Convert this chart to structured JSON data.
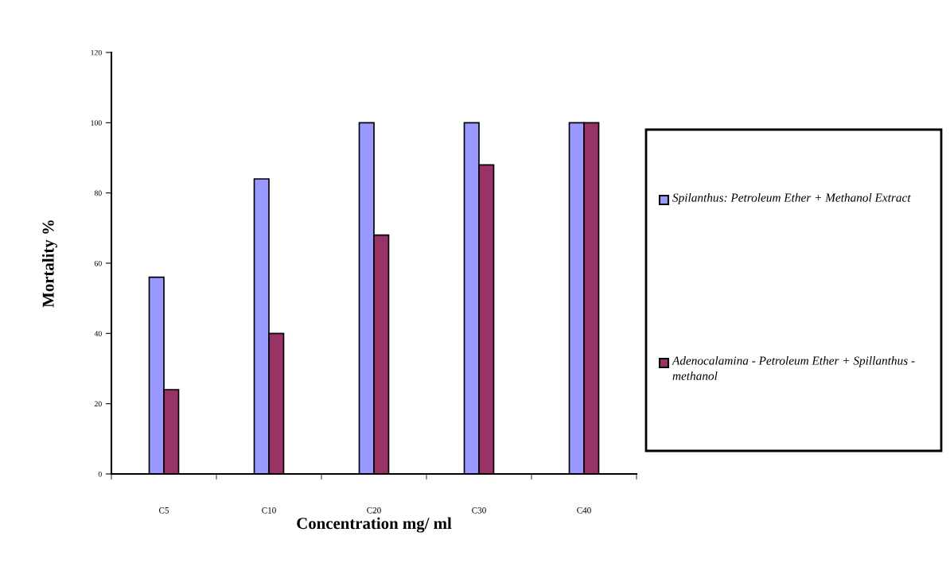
{
  "chart_data": {
    "type": "bar",
    "xlabel": "Concentration mg/ ml",
    "ylabel": "Mortality %",
    "categories": [
      "C5",
      "C10",
      "C20",
      "C30",
      "C40"
    ],
    "series": [
      {
        "name": "Spilanthus: Petroleum Ether + Methanol Extract",
        "color": "#9999ff",
        "values": [
          56,
          84,
          100,
          100,
          100
        ]
      },
      {
        "name": "Adenocalamina - Petroleum Ether + Spillanthus - methanol",
        "color": "#993366",
        "values": [
          24,
          40,
          68,
          88,
          100
        ]
      }
    ],
    "ylim": [
      0,
      120
    ],
    "yticks": [
      0,
      20,
      40,
      60,
      80,
      100,
      120
    ],
    "grid": false,
    "legend": "right"
  }
}
